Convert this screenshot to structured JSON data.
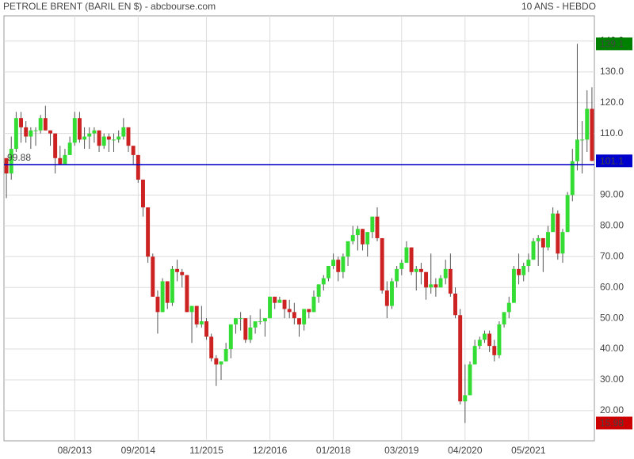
{
  "chart_data": {
    "type": "candlestick",
    "title": "PETROLE BRENT (BARIL EN $) - abcbourse.com",
    "subtitle": "10 ANS - HEBDO",
    "categories": [
      null,
      null,
      null,
      null,
      null,
      null,
      null,
      null,
      null,
      null,
      null,
      null,
      null,
      null,
      "08/2013",
      null,
      null,
      null,
      null,
      null,
      null,
      null,
      null,
      null,
      null,
      null,
      null,
      "09/2014",
      null,
      null,
      null,
      null,
      null,
      null,
      null,
      null,
      null,
      null,
      null,
      null,
      null,
      "11/2015",
      null,
      null,
      null,
      null,
      null,
      null,
      null,
      null,
      null,
      null,
      null,
      null,
      "12/2016",
      null,
      null,
      null,
      null,
      null,
      null,
      null,
      null,
      null,
      null,
      null,
      null,
      "01/2018",
      null,
      null,
      null,
      null,
      null,
      null,
      null,
      null,
      null,
      null,
      null,
      null,
      null,
      "03/2019",
      null,
      null,
      null,
      null,
      null,
      null,
      null,
      null,
      null,
      null,
      null,
      null,
      "04/2020",
      null,
      null,
      null,
      null,
      null,
      null,
      null,
      null,
      null,
      null,
      null,
      null,
      "05/2021",
      null,
      null,
      null,
      null,
      null,
      null,
      null,
      null,
      null,
      null,
      null,
      null,
      null
    ],
    "open": [
      102,
      97,
      105,
      115,
      112,
      109,
      111,
      111,
      115,
      111,
      110,
      102,
      100,
      103,
      107,
      115,
      108,
      109,
      110,
      111,
      106,
      109,
      108,
      108,
      109,
      112,
      106,
      103,
      95,
      86,
      70,
      57,
      52,
      62,
      55,
      66,
      65,
      64,
      52,
      54,
      48,
      49,
      44,
      37,
      35,
      36,
      40,
      48,
      50,
      50,
      43,
      47,
      49,
      49,
      50,
      57,
      55,
      56,
      53,
      52,
      50,
      48,
      53,
      52,
      57,
      61,
      63,
      67,
      69,
      65,
      70,
      75,
      77,
      79,
      74,
      78,
      83,
      76,
      59,
      54,
      62,
      66,
      68,
      73,
      65,
      66,
      65,
      60,
      61,
      60,
      63,
      66,
      58,
      51,
      23,
      25,
      35,
      41,
      43,
      45,
      41,
      38,
      48,
      52,
      55,
      66,
      64,
      67,
      69,
      75,
      76,
      73,
      78,
      84,
      71,
      78,
      90,
      101,
      108,
      108,
      118
    ],
    "high": [
      102,
      109,
      117,
      117,
      114,
      112,
      112,
      116,
      119,
      111,
      110,
      106,
      105,
      109,
      117,
      117,
      112,
      112,
      112,
      111,
      110,
      110,
      110,
      111,
      115,
      112,
      106,
      103,
      95,
      86,
      71,
      59,
      63,
      62,
      67,
      69,
      66,
      64,
      54,
      54,
      54,
      50,
      45,
      38,
      36,
      42,
      48,
      50,
      52,
      50,
      51,
      49,
      53,
      50,
      57,
      57,
      57,
      56,
      56,
      55,
      50,
      53,
      53,
      59,
      61,
      64,
      67,
      71,
      70,
      71,
      75,
      80,
      80,
      79,
      78,
      83,
      86,
      76,
      62,
      63,
      67,
      69,
      75,
      73,
      67,
      68,
      65,
      71,
      63,
      64,
      69,
      71,
      60,
      53,
      35,
      36,
      43,
      44,
      46,
      46,
      43,
      49,
      52,
      57,
      67,
      71,
      68,
      71,
      76,
      77,
      76,
      80,
      86,
      85,
      79,
      91,
      105,
      139.1,
      114,
      124,
      125
    ],
    "low": [
      89,
      95,
      104,
      107,
      107,
      105,
      106,
      110,
      111,
      106,
      97,
      100,
      100,
      103,
      106,
      107,
      105,
      105,
      107,
      104,
      105,
      104,
      104,
      107,
      108,
      104,
      100,
      94,
      83,
      68,
      57,
      45,
      52,
      53,
      54,
      62,
      60,
      52,
      42,
      47,
      47,
      43,
      36,
      28,
      30,
      36,
      37,
      45,
      46,
      42,
      42,
      45,
      48,
      44,
      50,
      53,
      55,
      50,
      50,
      48,
      44,
      46,
      50,
      52,
      55,
      59,
      62,
      66,
      62,
      63,
      67,
      74,
      72,
      72,
      70,
      76,
      75,
      58,
      50,
      53,
      60,
      64,
      68,
      64,
      59,
      61,
      56,
      58,
      57,
      60,
      61,
      57,
      50,
      22,
      15.98,
      25,
      35,
      40,
      42,
      39,
      36,
      37,
      47,
      50,
      55,
      61,
      62,
      65,
      69,
      67,
      65,
      72,
      78,
      69,
      68,
      78,
      88,
      98,
      97,
      104,
      101
    ],
    "close": [
      97,
      105,
      115,
      112,
      109,
      111,
      111,
      115,
      111,
      110,
      102,
      100,
      103,
      107,
      115,
      108,
      109,
      110,
      111,
      106,
      109,
      108,
      108,
      109,
      112,
      106,
      103,
      95,
      86,
      70,
      57,
      52,
      62,
      55,
      66,
      65,
      64,
      52,
      54,
      48,
      49,
      44,
      37,
      35,
      36,
      40,
      48,
      50,
      50,
      43,
      47,
      49,
      49,
      50,
      57,
      55,
      56,
      53,
      52,
      50,
      48,
      53,
      52,
      57,
      61,
      63,
      67,
      69,
      65,
      70,
      75,
      77,
      79,
      74,
      78,
      83,
      76,
      59,
      54,
      62,
      66,
      68,
      73,
      65,
      66,
      65,
      60,
      61,
      60,
      63,
      66,
      58,
      51,
      23,
      25,
      35,
      41,
      43,
      45,
      41,
      38,
      48,
      52,
      55,
      66,
      64,
      67,
      69,
      75,
      76,
      73,
      78,
      84,
      71,
      78,
      90,
      101,
      108,
      108,
      118,
      101.1
    ],
    "up_color": "#33dd33",
    "down_color": "#cc2222",
    "ylim": [
      10.2,
      148.2
    ],
    "yticks": [
      {
        "value": 20,
        "label": "20.00"
      },
      {
        "value": 30,
        "label": "30.00"
      },
      {
        "value": 40,
        "label": "40.00"
      },
      {
        "value": 50,
        "label": "50.00"
      },
      {
        "value": 60,
        "label": "60.00"
      },
      {
        "value": 70,
        "label": "70.00"
      },
      {
        "value": 80,
        "label": "80.00"
      },
      {
        "value": 90,
        "label": "90.00"
      },
      {
        "value": 100,
        "label": "100.0"
      },
      {
        "value": 110,
        "label": "110.0"
      },
      {
        "value": 120,
        "label": "120.0"
      },
      {
        "value": 130,
        "label": "130.0"
      },
      {
        "value": 140,
        "label": "140.0"
      }
    ],
    "grid": true,
    "reference_line": {
      "value": 99.88,
      "color": "#0000cc"
    },
    "markers": [
      {
        "value": 139.1,
        "color": "#008000"
      },
      {
        "value": 101.1,
        "color": "#0000cc"
      },
      {
        "value": 15.98,
        "color": "#cc0000"
      }
    ]
  }
}
